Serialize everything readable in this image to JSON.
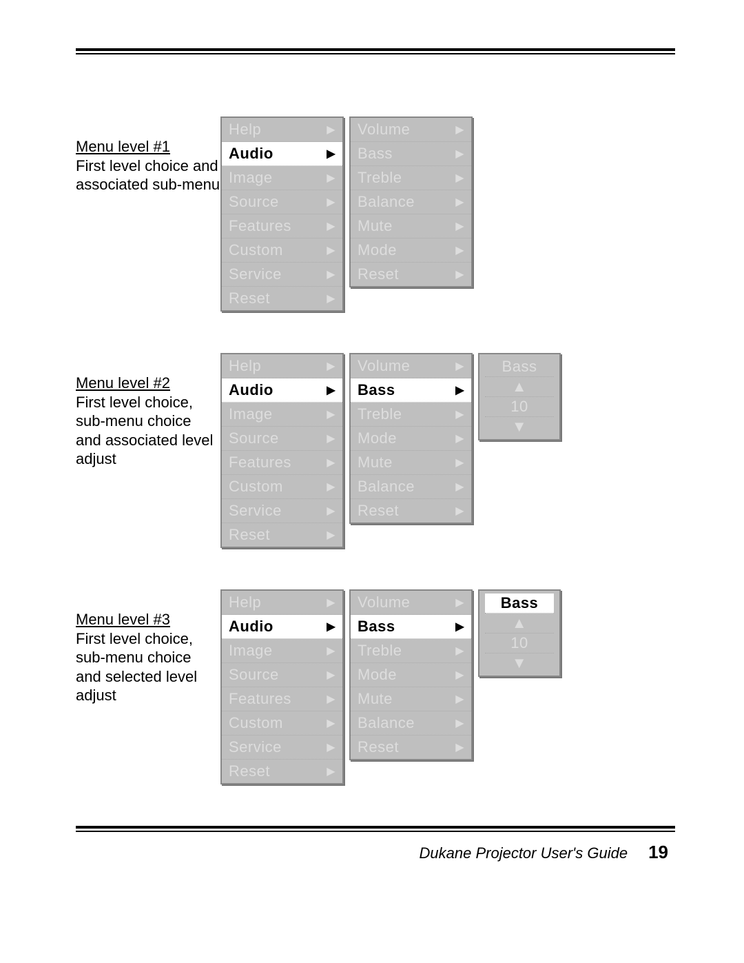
{
  "colors": {
    "page_bg": "#ffffff",
    "menu_bg": "#bfbfbf",
    "menu_border": "#888888",
    "dim_text": "#dddddd",
    "sel_bg": "#ffffff",
    "sel_text": "#000000"
  },
  "main_menu": [
    "Help",
    "Audio",
    "Image",
    "Source",
    "Features",
    "Custom",
    "Service",
    "Reset"
  ],
  "audio_submenu_a": [
    "Volume",
    "Bass",
    "Treble",
    "Balance",
    "Mute",
    "Mode",
    "Reset"
  ],
  "audio_submenu_b": [
    "Volume",
    "Bass",
    "Treble",
    "Mode",
    "Mute",
    "Balance",
    "Reset"
  ],
  "adjust_label": "Bass",
  "adjust_value": "10",
  "captions": {
    "c1": {
      "title": "Menu level #1",
      "body": "First level choice and associated sub-menu"
    },
    "c2": {
      "title": "Menu level #2",
      "body": "First level choice, sub-menu choice and associated level adjust"
    },
    "c3": {
      "title": "Menu level #3",
      "body": "First level choice, sub-menu choice and selected level adjust"
    }
  },
  "footer": {
    "title": "Dukane Projector User's Guide",
    "page": "19"
  },
  "arrow_glyph": "▶",
  "tri_up": "▲",
  "tri_down": "▼"
}
